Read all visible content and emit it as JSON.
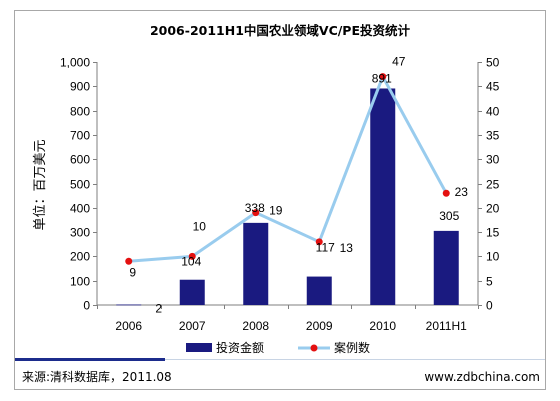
{
  "chart_data": {
    "type": "bar",
    "title": "2006-2011H1中国农业领域VC/PE投资统计",
    "categories": [
      "2006",
      "2007",
      "2008",
      "2009",
      "2010",
      "2011H1"
    ],
    "series": [
      {
        "name": "投资金额",
        "type": "bar",
        "y_axis": "left",
        "values": [
          2,
          104,
          338,
          117,
          891,
          305
        ],
        "color": "#1a1a80"
      },
      {
        "name": "案例数",
        "type": "line",
        "y_axis": "right",
        "values": [
          9,
          10,
          19,
          13,
          47,
          23
        ],
        "color": "#99ccee",
        "marker_color": "#e41010"
      }
    ],
    "ylabel": "单位：百万美元",
    "ylim": [
      0,
      1000
    ],
    "yticks": [
      "0",
      "100",
      "200",
      "300",
      "400",
      "500",
      "600",
      "700",
      "800",
      "900",
      "1,000"
    ],
    "y2lim": [
      0,
      50
    ],
    "y2ticks": [
      "0",
      "5",
      "10",
      "15",
      "20",
      "25",
      "30",
      "35",
      "40",
      "45",
      "50"
    ],
    "legend": "bottom",
    "grid": false
  },
  "footer": {
    "source": "来源:清科数据库，2011.08",
    "website": "www.zdbchina.com",
    "accent_color": "#1c2c8c"
  }
}
